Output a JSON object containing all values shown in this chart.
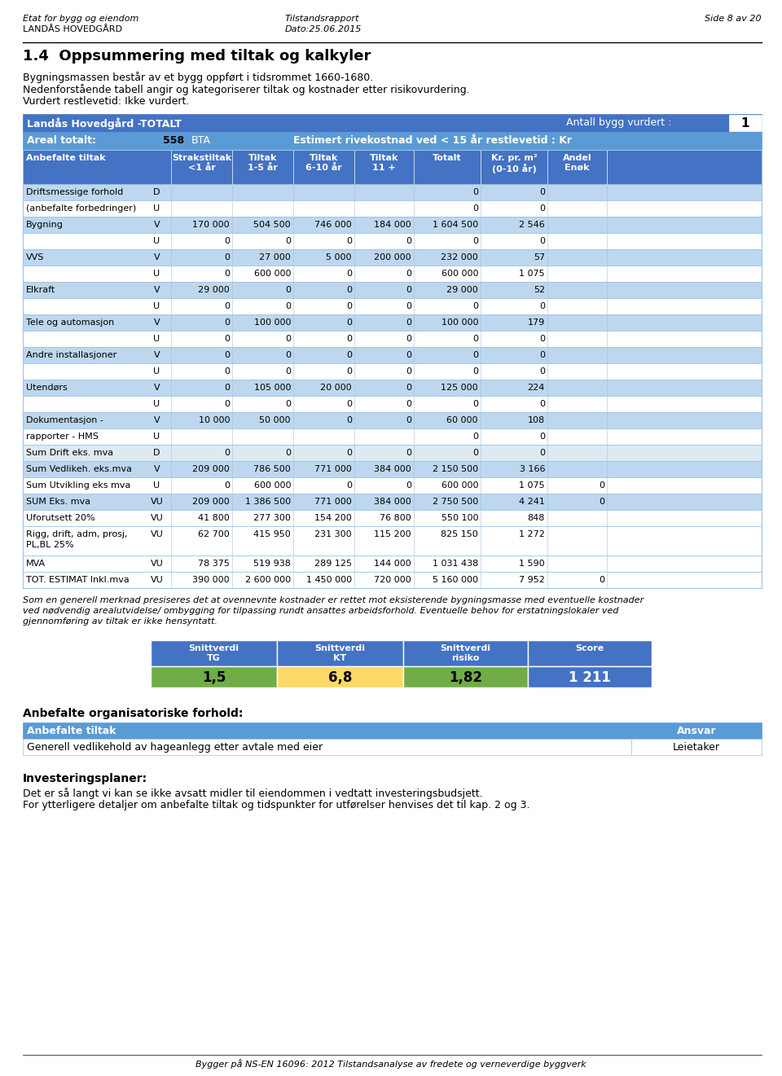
{
  "header_left1": "Etat for bygg og eiendom",
  "header_left2": "LANDÅS HOVEDGÅRD",
  "header_mid1": "Tilstandsrapport",
  "header_mid2": "Dato:25.06.2015",
  "header_right1": "Side 8 av 20",
  "section_title": "1.4  Oppsummering med tiltak og kalkyler",
  "intro_lines": [
    "Bygningsmassen består av et bygg oppført i tidsrommet 1660-1680.",
    "Nedenforstående tabell angir og kategoriserer tiltak og kostnader etter risikovurdering.",
    "Vurdert restlevetid: Ikke vurdert."
  ],
  "banner1_left": "Landås Hovedgård -TOTALT",
  "banner1_right_label": "Antall bygg vurdert :",
  "banner1_right_value": "1",
  "banner2_left": "Areal totalt:",
  "banner2_mid": "558",
  "banner2_mid2": "BTA",
  "banner2_right": "Estimert rivekostnad ved < 15 år restlevetid : Kr",
  "col_headers": [
    "Anbefalte tiltak",
    "",
    "Strakstiltak\n<1 år",
    "Tiltak\n1-5 år",
    "Tiltak\n6-10 år",
    "Tiltak\n11 +",
    "Totalt",
    "Kr. pr. m²\n(0-10 år)",
    "Andel\nEnøk"
  ],
  "rows": [
    {
      "label": "Driftsmessige forhold",
      "type": "D",
      "v1": "",
      "v2": "",
      "v3": "",
      "v4": "",
      "totalt": "0",
      "krm2": "0",
      "enok": ""
    },
    {
      "label": "(anbefalte forbedringer)",
      "type": "U",
      "v1": "",
      "v2": "",
      "v3": "",
      "v4": "",
      "totalt": "0",
      "krm2": "0",
      "enok": ""
    },
    {
      "label": "Bygning",
      "type": "V",
      "v1": "170 000",
      "v2": "504 500",
      "v3": "746 000",
      "v4": "184 000",
      "totalt": "1 604 500",
      "krm2": "2 546",
      "enok": ""
    },
    {
      "label": "",
      "type": "U",
      "v1": "0",
      "v2": "0",
      "v3": "0",
      "v4": "0",
      "totalt": "0",
      "krm2": "0",
      "enok": ""
    },
    {
      "label": "VVS",
      "type": "V",
      "v1": "0",
      "v2": "27 000",
      "v3": "5 000",
      "v4": "200 000",
      "totalt": "232 000",
      "krm2": "57",
      "enok": ""
    },
    {
      "label": "",
      "type": "U",
      "v1": "0",
      "v2": "600 000",
      "v3": "0",
      "v4": "0",
      "totalt": "600 000",
      "krm2": "1 075",
      "enok": ""
    },
    {
      "label": "Elkraft",
      "type": "V",
      "v1": "29 000",
      "v2": "0",
      "v3": "0",
      "v4": "0",
      "totalt": "29 000",
      "krm2": "52",
      "enok": ""
    },
    {
      "label": "",
      "type": "U",
      "v1": "0",
      "v2": "0",
      "v3": "0",
      "v4": "0",
      "totalt": "0",
      "krm2": "0",
      "enok": ""
    },
    {
      "label": "Tele og automasjon",
      "type": "V",
      "v1": "0",
      "v2": "100 000",
      "v3": "0",
      "v4": "0",
      "totalt": "100 000",
      "krm2": "179",
      "enok": ""
    },
    {
      "label": "",
      "type": "U",
      "v1": "0",
      "v2": "0",
      "v3": "0",
      "v4": "0",
      "totalt": "0",
      "krm2": "0",
      "enok": ""
    },
    {
      "label": "Andre installasjoner",
      "type": "V",
      "v1": "0",
      "v2": "0",
      "v3": "0",
      "v4": "0",
      "totalt": "0",
      "krm2": "0",
      "enok": ""
    },
    {
      "label": "",
      "type": "U",
      "v1": "0",
      "v2": "0",
      "v3": "0",
      "v4": "0",
      "totalt": "0",
      "krm2": "0",
      "enok": ""
    },
    {
      "label": "Utendørs",
      "type": "V",
      "v1": "0",
      "v2": "105 000",
      "v3": "20 000",
      "v4": "0",
      "totalt": "125 000",
      "krm2": "224",
      "enok": ""
    },
    {
      "label": "",
      "type": "U",
      "v1": "0",
      "v2": "0",
      "v3": "0",
      "v4": "0",
      "totalt": "0",
      "krm2": "0",
      "enok": ""
    },
    {
      "label": "Dokumentasjon -",
      "type": "V",
      "v1": "10 000",
      "v2": "50 000",
      "v3": "0",
      "v4": "0",
      "totalt": "60 000",
      "krm2": "108",
      "enok": ""
    },
    {
      "label": "rapporter - HMS",
      "type": "U",
      "v1": "",
      "v2": "",
      "v3": "",
      "v4": "",
      "totalt": "0",
      "krm2": "0",
      "enok": ""
    },
    {
      "label": "Sum Drift eks. mva",
      "type": "D",
      "v1": "0",
      "v2": "0",
      "v3": "0",
      "v4": "0",
      "totalt": "0",
      "krm2": "0",
      "enok": ""
    },
    {
      "label": "Sum Vedlikeh. eks.mva",
      "type": "V",
      "v1": "209 000",
      "v2": "786 500",
      "v3": "771 000",
      "v4": "384 000",
      "totalt": "2 150 500",
      "krm2": "3 166",
      "enok": ""
    },
    {
      "label": "Sum Utvikling eks mva",
      "type": "U",
      "v1": "0",
      "v2": "600 000",
      "v3": "0",
      "v4": "0",
      "totalt": "600 000",
      "krm2": "1 075",
      "enok": "0"
    },
    {
      "label": "SUM Eks. mva",
      "type": "VU",
      "v1": "209 000",
      "v2": "1 386 500",
      "v3": "771 000",
      "v4": "384 000",
      "totalt": "2 750 500",
      "krm2": "4 241",
      "enok": "0"
    },
    {
      "label": "Uforutsett 20%",
      "type": "VU",
      "v1": "41 800",
      "v2": "277 300",
      "v3": "154 200",
      "v4": "76 800",
      "totalt": "550 100",
      "krm2": "848",
      "enok": ""
    },
    {
      "label": "Rigg, drift, adm, prosj,\nPL,BL 25%",
      "type": "VU",
      "v1": "62 700",
      "v2": "415 950",
      "v3": "231 300",
      "v4": "115 200",
      "totalt": "825 150",
      "krm2": "1 272",
      "enok": ""
    },
    {
      "label": "MVA",
      "type": "VU",
      "v1": "78 375",
      "v2": "519 938",
      "v3": "289 125",
      "v4": "144 000",
      "totalt": "1 031 438",
      "krm2": "1 590",
      "enok": ""
    },
    {
      "label": "TOT. ESTIMAT Inkl.mva",
      "type": "VU",
      "v1": "390 000",
      "v2": "2 600 000",
      "v3": "1 450 000",
      "v4": "720 000",
      "totalt": "5 160 000",
      "krm2": "7 952",
      "enok": "0"
    }
  ],
  "row_colors": [
    "#BDD7EE",
    "#FFFFFF",
    "#BDD7EE",
    "#FFFFFF",
    "#BDD7EE",
    "#FFFFFF",
    "#BDD7EE",
    "#FFFFFF",
    "#BDD7EE",
    "#FFFFFF",
    "#BDD7EE",
    "#FFFFFF",
    "#BDD7EE",
    "#FFFFFF",
    "#BDD7EE",
    "#FFFFFF",
    "#DEEAF1",
    "#BDD7EE",
    "#FFFFFF",
    "#BDD7EE",
    "#FFFFFF",
    "#FFFFFF",
    "#FFFFFF",
    "#FFFFFF"
  ],
  "footnote": "Som en generell merknad presiseres det at ovennevnte kostnader er rettet mot eksisterende bygningsmasse med eventuelle kostnader\nved nødvendig arealutvidelse/ ombygging for tilpassing rundt ansattes arbeidsforhold. Eventuelle behov for erstatningslokaler ved\ngjennomføring av tiltak er ikke hensyntatt.",
  "snitt_headers": [
    "Snittverdi\nTG",
    "Snittverdi\nKT",
    "Snittverdi\nrisiko",
    "Score"
  ],
  "snitt_values": [
    "1,5",
    "6,8",
    "1,82",
    "1 211"
  ],
  "snitt_val_colors": [
    "#70AD47",
    "#FFD966",
    "#70AD47",
    "#4472C4"
  ],
  "snitt_text_colors": [
    "black",
    "black",
    "black",
    "white"
  ],
  "org_title": "Anbefalte organisatoriske forhold:",
  "org_header_left": "Anbefalte tiltak",
  "org_header_right": "Ansvar",
  "org_row_left": "Generell vedlikehold av hageanlegg etter avtale med eier",
  "org_row_right": "Leietaker",
  "invest_title": "Investeringsplaner:",
  "invest_lines": [
    "Det er så langt vi kan se ikke avsatt midler til eiendommen i vedtatt investeringsbudsjett.",
    "For ytterligere detaljer om anbefalte tiltak og tidspunkter for utførelser henvises det til kap. 2 og 3."
  ],
  "footer": "Bygger på NS-EN 16096: 2012 Tilstandsanalyse av fredete og verneverdige byggverk",
  "color_blue_dark": "#4472C4",
  "color_blue_mid": "#5B9BD5",
  "color_blue_light": "#BDD7EE",
  "color_blue_lighter": "#DEEAF1",
  "color_white": "#FFFFFF",
  "color_border": "#9DC3E6"
}
